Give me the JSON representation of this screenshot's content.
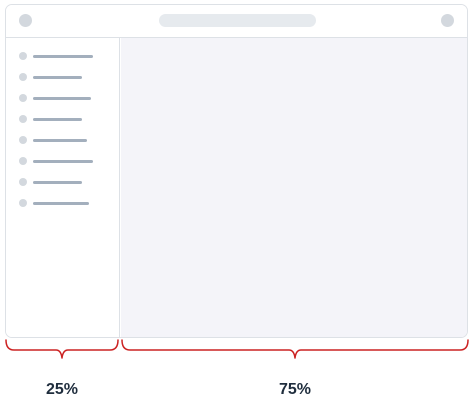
{
  "labels": {
    "sidebar_width": "25%",
    "main_width": "75%"
  },
  "colors": {
    "brace": "#cc2222",
    "window_border": "#dde1e6",
    "main_background": "#f4f4f9",
    "nav_bar": "#a3afbd",
    "dot": "#d3d8de",
    "label_text": "#1f2d3d"
  },
  "sidebar": {
    "item_count": 8
  }
}
